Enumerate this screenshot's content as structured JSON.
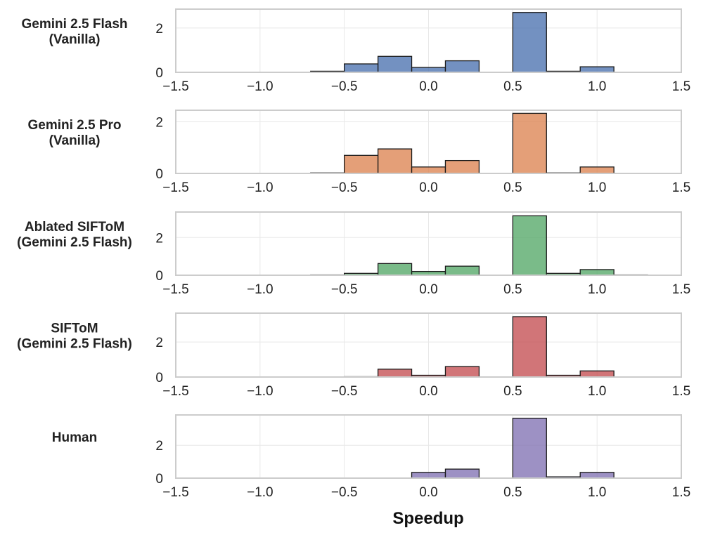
{
  "chart_data": {
    "type": "bar",
    "xlabel": "Speedup",
    "xlim": [
      -1.5,
      1.5
    ],
    "xticks": [
      -1.5,
      -1.0,
      -0.5,
      0.0,
      0.5,
      1.0,
      1.5
    ],
    "xtick_labels": [
      "−1.5",
      "−1.0",
      "−0.5",
      "0.0",
      "0.5",
      "1.0",
      "1.5"
    ],
    "bin_edges": [
      -1.5,
      -1.3,
      -1.1,
      -0.9,
      -0.7,
      -0.5,
      -0.3,
      -0.1,
      0.1,
      0.3,
      0.5,
      0.7,
      0.9,
      1.1,
      1.3,
      1.5
    ],
    "grid": true,
    "panels": [
      {
        "label_lines": [
          "Gemini 2.5 Flash",
          "(Vanilla)"
        ],
        "color": "#4C72B0",
        "ylim": [
          0,
          2.85
        ],
        "yticks": [
          0,
          2
        ],
        "values": [
          0,
          0,
          0,
          0,
          0.05,
          0.38,
          0.72,
          0.22,
          0.52,
          0,
          2.7,
          0.05,
          0.25,
          0,
          0
        ]
      },
      {
        "label_lines": [
          "Gemini 2.5 Pro",
          "(Vanilla)"
        ],
        "color": "#DD8452",
        "ylim": [
          0,
          2.45
        ],
        "yticks": [
          0,
          2
        ],
        "values": [
          0,
          0,
          0,
          0,
          0.02,
          0.7,
          0.95,
          0.25,
          0.5,
          0,
          2.33,
          0.02,
          0.25,
          0,
          0
        ]
      },
      {
        "label_lines": [
          "Ablated SIFToM",
          "(Gemini 2.5 Flash)"
        ],
        "color": "#55A868",
        "ylim": [
          0,
          3.35
        ],
        "yticks": [
          0,
          2
        ],
        "values": [
          0,
          0,
          0,
          0,
          0.02,
          0.1,
          0.62,
          0.2,
          0.48,
          0,
          3.15,
          0.1,
          0.3,
          0.02,
          0
        ]
      },
      {
        "label_lines": [
          "SIFToM",
          "(Gemini 2.5 Flash)"
        ],
        "color": "#C44E52",
        "ylim": [
          0,
          3.65
        ],
        "yticks": [
          0,
          2
        ],
        "values": [
          0,
          0,
          0,
          0,
          0,
          0.02,
          0.45,
          0.1,
          0.6,
          0,
          3.45,
          0.1,
          0.35,
          0,
          0
        ]
      },
      {
        "label_lines": [
          "Human"
        ],
        "color": "#8172B3",
        "ylim": [
          0,
          3.85
        ],
        "yticks": [
          0,
          2
        ],
        "values": [
          0,
          0,
          0,
          0,
          0,
          0,
          0,
          0.35,
          0.55,
          0,
          3.65,
          0.08,
          0.35,
          0,
          0
        ]
      }
    ]
  }
}
